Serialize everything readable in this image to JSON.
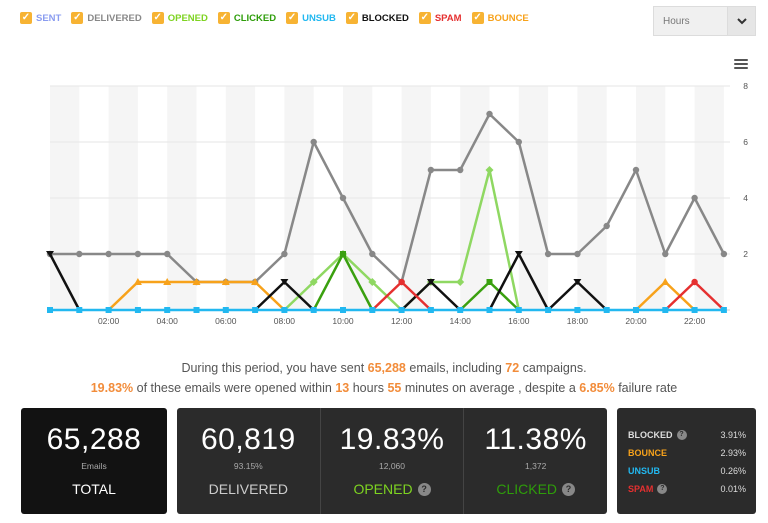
{
  "legend": [
    {
      "label": "SENT",
      "color": "#8a9cf0"
    },
    {
      "label": "DELIVERED",
      "color": "#888888"
    },
    {
      "label": "OPENED",
      "color": "#7ed321"
    },
    {
      "label": "CLICKED",
      "color": "#2e9d0a"
    },
    {
      "label": "UNSUB",
      "color": "#22b8f0"
    },
    {
      "label": "BLOCKED",
      "color": "#111111"
    },
    {
      "label": "SPAM",
      "color": "#e53030"
    },
    {
      "label": "BOUNCE",
      "color": "#f7a21b"
    }
  ],
  "checkbox_mark": "✓",
  "hours_select": {
    "value": "Hours",
    "icon": "chevron-down-icon"
  },
  "chart_data": {
    "type": "line",
    "x": [
      0,
      1,
      2,
      3,
      4,
      5,
      6,
      7,
      8,
      9,
      10,
      11,
      12,
      13,
      14,
      15,
      16,
      17,
      18,
      19,
      20,
      21,
      22,
      23
    ],
    "xticks": [
      "02:00",
      "04:00",
      "06:00",
      "08:00",
      "10:00",
      "12:00",
      "14:00",
      "16:00",
      "18:00",
      "20:00",
      "22:00"
    ],
    "xtick_positions": [
      2,
      4,
      6,
      8,
      10,
      12,
      14,
      16,
      18,
      20,
      22
    ],
    "yticks": [
      "8",
      "6",
      "4",
      "2"
    ],
    "ylim": [
      0,
      8
    ],
    "series": [
      {
        "name": "DELIVERED",
        "color": "#888888",
        "values": [
          2,
          2,
          2,
          2,
          2,
          1,
          1,
          1,
          2,
          6,
          4,
          2,
          1,
          5,
          5,
          7,
          6,
          2,
          2,
          3,
          5,
          2,
          4,
          2
        ]
      },
      {
        "name": "OPENED",
        "color": "#8fd862",
        "values": [
          0,
          0,
          0,
          0,
          0,
          0,
          0,
          0,
          0,
          1,
          2,
          1,
          0,
          1,
          1,
          5,
          0,
          0,
          0,
          0,
          0,
          0,
          0,
          0
        ]
      },
      {
        "name": "CLICKED",
        "color": "#3aa00f",
        "values": [
          0,
          0,
          0,
          0,
          0,
          0,
          0,
          0,
          0,
          0,
          2,
          0,
          0,
          0,
          0,
          1,
          0,
          0,
          0,
          0,
          0,
          0,
          0,
          0
        ]
      },
      {
        "name": "BOUNCE",
        "color": "#f7a21b",
        "values": [
          0,
          0,
          0,
          1,
          1,
          1,
          1,
          1,
          0,
          0,
          0,
          0,
          0,
          0,
          0,
          0,
          0,
          0,
          0,
          0,
          0,
          1,
          0,
          0
        ]
      },
      {
        "name": "BLOCKED",
        "color": "#111111",
        "values": [
          2,
          0,
          0,
          0,
          0,
          0,
          0,
          0,
          1,
          0,
          0,
          0,
          0,
          1,
          0,
          0,
          2,
          0,
          1,
          0,
          0,
          0,
          0,
          0
        ]
      },
      {
        "name": "SPAM",
        "color": "#e53030",
        "values": [
          0,
          0,
          0,
          0,
          0,
          0,
          0,
          0,
          0,
          0,
          0,
          0,
          1,
          0,
          0,
          0,
          0,
          0,
          0,
          0,
          0,
          0,
          1,
          0
        ]
      },
      {
        "name": "UNSUB",
        "color": "#22b8f0",
        "values": [
          0,
          0,
          0,
          0,
          0,
          0,
          0,
          0,
          0,
          0,
          0,
          0,
          0,
          0,
          0,
          0,
          0,
          0,
          0,
          0,
          0,
          0,
          0,
          0
        ]
      }
    ],
    "grid": true
  },
  "summary": {
    "l1_a": "During this period, you have sent ",
    "l1_emails": "65,288",
    "l1_b": " emails, including ",
    "l1_campaigns": "72",
    "l1_c": " campaigns.",
    "l2_rate": "19.83%",
    "l2_a": " of these emails were opened within ",
    "l2_hours": "13",
    "l2_b": " hours ",
    "l2_minutes": "55",
    "l2_c": " minutes on average , despite a ",
    "l2_fail": "6.85%",
    "l2_d": " failure rate"
  },
  "cards": {
    "total": {
      "value": "65,288",
      "sub": "Emails",
      "caption": "TOTAL"
    },
    "delivered": {
      "value": "60,819",
      "sub": "93.15%",
      "caption": "DELIVERED"
    },
    "opened": {
      "value": "19.83%",
      "sub": "12,060",
      "caption": "OPENED",
      "color": "#7ed321"
    },
    "clicked": {
      "value": "11.38%",
      "sub": "1,372",
      "caption": "CLICKED",
      "color": "#2e9d0a"
    }
  },
  "side": [
    {
      "label": "BLOCKED",
      "value": "3.91%",
      "color": "#dddddd",
      "help": true
    },
    {
      "label": "BOUNCE",
      "value": "2.93%",
      "color": "#f7a21b",
      "help": false
    },
    {
      "label": "UNSUB",
      "value": "0.26%",
      "color": "#22b8f0",
      "help": false
    },
    {
      "label": "SPAM",
      "value": "0.01%",
      "color": "#e53030",
      "help": true
    }
  ],
  "help_mark": "?"
}
